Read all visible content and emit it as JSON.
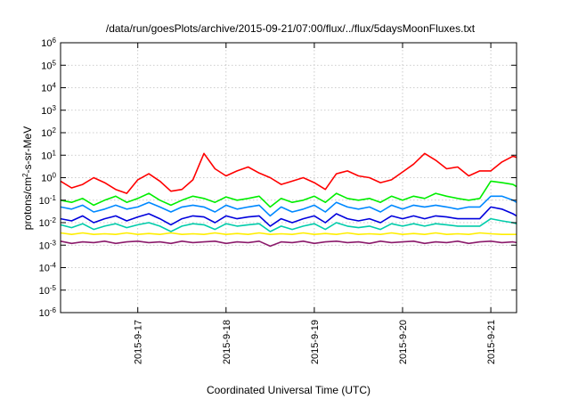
{
  "chart_data": {
    "type": "line",
    "title": "/data/run/goesPlots/archive/2015-09-21/07:00/flux/../flux/5daysMoonFluxes.txt",
    "xlabel": "Coordinated Universal Time (UTC)",
    "ylabel": {
      "base": "protons/cm",
      "sup": "2",
      "rest": "-s-sr-MeV"
    },
    "yscale": "log",
    "ylim": [
      1e-06,
      1000000.0
    ],
    "xlim": [
      "2015-09-16 03:00",
      "2015-09-21 07:00"
    ],
    "grid": true,
    "legend": "none",
    "x_ticks": [
      {
        "date": "2015-09-17 00:00",
        "label": "2015-9-17"
      },
      {
        "date": "2015-09-18 00:00",
        "label": "2015-9-18"
      },
      {
        "date": "2015-09-19 00:00",
        "label": "2015-9-19"
      },
      {
        "date": "2015-09-20 00:00",
        "label": "2015-9-20"
      },
      {
        "date": "2015-09-21 00:00",
        "label": "2015-9-21"
      }
    ],
    "y_ticks": [
      {
        "value": 1000000.0,
        "base": "10",
        "exp": "6"
      },
      {
        "value": 100000.0,
        "base": "10",
        "exp": "5"
      },
      {
        "value": 10000.0,
        "base": "10",
        "exp": "4"
      },
      {
        "value": 1000.0,
        "base": "10",
        "exp": "3"
      },
      {
        "value": 100.0,
        "base": "10",
        "exp": "2"
      },
      {
        "value": 10.0,
        "base": "10",
        "exp": "1"
      },
      {
        "value": 1.0,
        "base": "10",
        "exp": "0"
      },
      {
        "value": 0.1,
        "base": "10",
        "exp": "-1"
      },
      {
        "value": 0.01,
        "base": "10",
        "exp": "-2"
      },
      {
        "value": 0.001,
        "base": "10",
        "exp": "-3"
      },
      {
        "value": 0.0001,
        "base": "10",
        "exp": "-4"
      },
      {
        "value": 1e-05,
        "base": "10",
        "exp": "-5"
      },
      {
        "value": 1e-06,
        "base": "10",
        "exp": "-6"
      }
    ],
    "x": [
      "2015-09-16 03:00",
      "2015-09-16 06:00",
      "2015-09-16 09:00",
      "2015-09-16 12:00",
      "2015-09-16 15:00",
      "2015-09-16 18:00",
      "2015-09-16 21:00",
      "2015-09-17 00:00",
      "2015-09-17 03:00",
      "2015-09-17 06:00",
      "2015-09-17 09:00",
      "2015-09-17 12:00",
      "2015-09-17 15:00",
      "2015-09-17 18:00",
      "2015-09-17 21:00",
      "2015-09-18 00:00",
      "2015-09-18 03:00",
      "2015-09-18 06:00",
      "2015-09-18 09:00",
      "2015-09-18 12:00",
      "2015-09-18 15:00",
      "2015-09-18 18:00",
      "2015-09-18 21:00",
      "2015-09-19 00:00",
      "2015-09-19 03:00",
      "2015-09-19 06:00",
      "2015-09-19 09:00",
      "2015-09-19 12:00",
      "2015-09-19 15:00",
      "2015-09-19 18:00",
      "2015-09-19 21:00",
      "2015-09-20 00:00",
      "2015-09-20 03:00",
      "2015-09-20 06:00",
      "2015-09-20 09:00",
      "2015-09-20 12:00",
      "2015-09-20 15:00",
      "2015-09-20 18:00",
      "2015-09-20 21:00",
      "2015-09-21 00:00",
      "2015-09-21 03:00",
      "2015-09-21 06:00",
      "2015-09-21 07:00"
    ],
    "series": [
      {
        "color": "#ff0000",
        "values": [
          0.7,
          0.35,
          0.5,
          1.0,
          0.6,
          0.3,
          0.2,
          0.8,
          1.5,
          0.7,
          0.25,
          0.3,
          0.8,
          12,
          2.5,
          1.2,
          2.0,
          3.0,
          1.6,
          1.0,
          0.5,
          0.7,
          1.0,
          0.6,
          0.3,
          1.5,
          2.0,
          1.2,
          1.0,
          0.6,
          0.8,
          1.8,
          4.0,
          12,
          6.0,
          2.5,
          3.0,
          1.2,
          2.0,
          2.0,
          5.0,
          9.0,
          8.0
        ]
      },
      {
        "color": "#00ee00",
        "values": [
          0.1,
          0.08,
          0.12,
          0.06,
          0.1,
          0.15,
          0.08,
          0.12,
          0.2,
          0.1,
          0.06,
          0.1,
          0.15,
          0.12,
          0.08,
          0.14,
          0.1,
          0.12,
          0.15,
          0.05,
          0.12,
          0.08,
          0.1,
          0.15,
          0.08,
          0.2,
          0.12,
          0.1,
          0.12,
          0.08,
          0.15,
          0.1,
          0.15,
          0.12,
          0.2,
          0.15,
          0.12,
          0.1,
          0.12,
          0.7,
          0.6,
          0.5,
          0.4
        ]
      },
      {
        "color": "#0088ff",
        "values": [
          0.05,
          0.04,
          0.06,
          0.03,
          0.04,
          0.06,
          0.04,
          0.05,
          0.08,
          0.05,
          0.03,
          0.05,
          0.06,
          0.05,
          0.03,
          0.06,
          0.04,
          0.05,
          0.06,
          0.02,
          0.05,
          0.03,
          0.04,
          0.06,
          0.03,
          0.08,
          0.05,
          0.04,
          0.05,
          0.03,
          0.06,
          0.04,
          0.06,
          0.05,
          0.06,
          0.05,
          0.04,
          0.05,
          0.05,
          0.15,
          0.15,
          0.1,
          0.08
        ]
      },
      {
        "color": "#0000dd",
        "values": [
          0.015,
          0.012,
          0.02,
          0.01,
          0.015,
          0.02,
          0.012,
          0.018,
          0.025,
          0.015,
          0.008,
          0.015,
          0.02,
          0.018,
          0.01,
          0.02,
          0.015,
          0.018,
          0.02,
          0.007,
          0.015,
          0.01,
          0.015,
          0.02,
          0.01,
          0.025,
          0.015,
          0.012,
          0.015,
          0.01,
          0.02,
          0.015,
          0.02,
          0.015,
          0.02,
          0.018,
          0.015,
          0.015,
          0.015,
          0.05,
          0.04,
          0.025,
          0.02
        ]
      },
      {
        "color": "#00ccaa",
        "values": [
          0.008,
          0.006,
          0.009,
          0.005,
          0.007,
          0.009,
          0.006,
          0.008,
          0.01,
          0.007,
          0.004,
          0.007,
          0.009,
          0.008,
          0.005,
          0.009,
          0.007,
          0.008,
          0.009,
          0.004,
          0.007,
          0.005,
          0.007,
          0.009,
          0.005,
          0.01,
          0.007,
          0.006,
          0.007,
          0.005,
          0.009,
          0.007,
          0.009,
          0.007,
          0.009,
          0.008,
          0.007,
          0.007,
          0.007,
          0.015,
          0.012,
          0.01,
          0.009
        ]
      },
      {
        "color": "#ffee00",
        "values": [
          0.0035,
          0.003,
          0.0035,
          0.003,
          0.0032,
          0.003,
          0.0035,
          0.003,
          0.0033,
          0.003,
          0.0035,
          0.003,
          0.0032,
          0.003,
          0.0035,
          0.003,
          0.0033,
          0.003,
          0.0035,
          0.003,
          0.0032,
          0.003,
          0.0035,
          0.003,
          0.0033,
          0.003,
          0.0035,
          0.003,
          0.0032,
          0.003,
          0.0035,
          0.003,
          0.0033,
          0.003,
          0.0035,
          0.003,
          0.0032,
          0.003,
          0.0035,
          0.0032,
          0.003,
          0.003,
          0.003
        ]
      },
      {
        "color": "#8b1a6b",
        "values": [
          0.0015,
          0.0012,
          0.0014,
          0.0013,
          0.0015,
          0.0012,
          0.0014,
          0.0015,
          0.0013,
          0.0014,
          0.0012,
          0.0015,
          0.0013,
          0.0014,
          0.0015,
          0.0012,
          0.0014,
          0.0013,
          0.0015,
          0.0009,
          0.0014,
          0.0013,
          0.0015,
          0.0012,
          0.0014,
          0.0015,
          0.0013,
          0.0014,
          0.0012,
          0.0015,
          0.0013,
          0.0014,
          0.0015,
          0.0012,
          0.0014,
          0.0013,
          0.0015,
          0.0012,
          0.0014,
          0.0015,
          0.0013,
          0.0014,
          0.0013
        ]
      }
    ]
  }
}
